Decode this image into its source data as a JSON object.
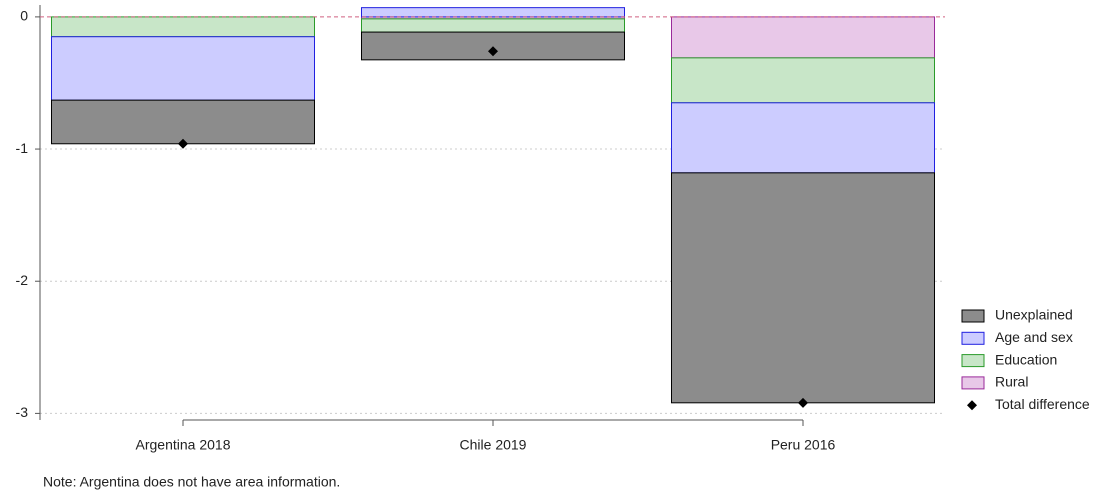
{
  "chart_data": {
    "type": "bar",
    "stacked": true,
    "categories": [
      "Argentina 2018",
      "Chile 2019",
      "Peru 2016"
    ],
    "series": [
      {
        "name": "Unexplained",
        "color": "#8c8c8c",
        "stroke": "#000000",
        "values": [
          -0.33,
          -0.21,
          -1.74
        ]
      },
      {
        "name": "Age and sex",
        "color": "#ccccff",
        "stroke": "#2020e0",
        "values": [
          -0.48,
          0.07,
          -0.53
        ]
      },
      {
        "name": "Education",
        "color": "#c8e6c8",
        "stroke": "#2a9a2a",
        "values": [
          -0.15,
          -0.1,
          -0.34
        ]
      },
      {
        "name": "Rural",
        "color": "#e8c8e8",
        "stroke": "#9a2a9a",
        "values": [
          null,
          -0.015,
          -0.31
        ]
      },
      {
        "name": "Total difference",
        "type": "scatter",
        "marker": "diamond",
        "color": "#000000",
        "values": [
          -0.96,
          -0.26,
          -2.92
        ]
      }
    ],
    "ylim": [
      -3.05,
      0.09
    ],
    "yticks": [
      0,
      -1,
      -2,
      -3
    ],
    "grid": true,
    "zero_line": true,
    "legend": "right",
    "note": "Note: Argentina does not have area information."
  }
}
